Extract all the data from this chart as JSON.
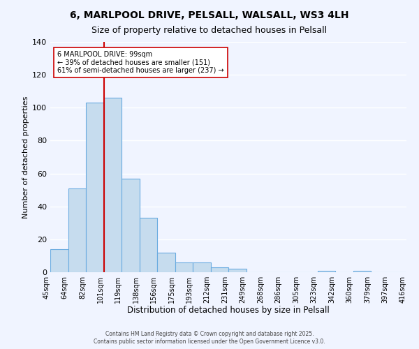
{
  "title": "6, MARLPOOL DRIVE, PELSALL, WALSALL, WS3 4LH",
  "subtitle": "Size of property relative to detached houses in Pelsall",
  "xlabel": "Distribution of detached houses by size in Pelsall",
  "ylabel": "Number of detached properties",
  "bar_values": [
    14,
    51,
    103,
    106,
    57,
    33,
    12,
    6,
    6,
    3,
    2,
    0,
    0,
    0,
    0,
    1,
    0,
    1,
    0,
    0
  ],
  "x_tick_labels": [
    "45sqm",
    "64sqm",
    "82sqm",
    "101sqm",
    "119sqm",
    "138sqm",
    "156sqm",
    "175sqm",
    "193sqm",
    "212sqm",
    "231sqm",
    "249sqm",
    "268sqm",
    "286sqm",
    "305sqm",
    "323sqm",
    "342sqm",
    "360sqm",
    "379sqm",
    "397sqm",
    "416sqm"
  ],
  "n_bins": 20,
  "bar_color": "#c6dcee",
  "bar_edge_color": "#6aabe0",
  "vline_bin": 3,
  "vline_color": "#cc0000",
  "ylim": [
    0,
    140
  ],
  "yticks": [
    0,
    20,
    40,
    60,
    80,
    100,
    120,
    140
  ],
  "annotation_text": "6 MARLPOOL DRIVE: 99sqm\n← 39% of detached houses are smaller (151)\n61% of semi-detached houses are larger (237) →",
  "annotation_box_color": "#ffffff",
  "annotation_box_edge": "#cc0000",
  "footer_line1": "Contains HM Land Registry data © Crown copyright and database right 2025.",
  "footer_line2": "Contains public sector information licensed under the Open Government Licence v3.0.",
  "background_color": "#f0f4ff",
  "grid_color": "#ffffff",
  "title_fontsize": 10,
  "subtitle_fontsize": 9
}
